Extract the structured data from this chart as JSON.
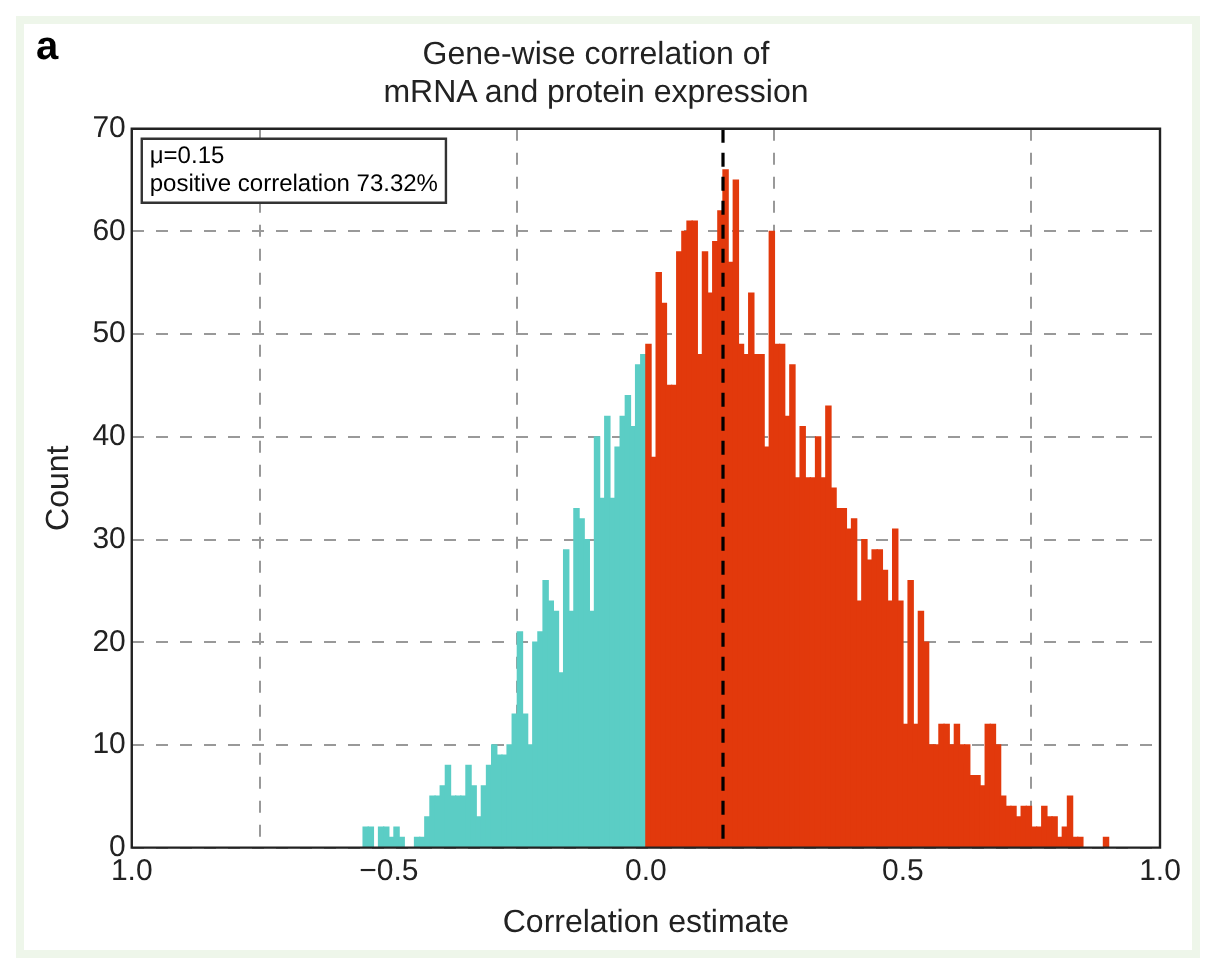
{
  "chart_data": {
    "type": "histogram",
    "title": "Gene-wise correlation of\nmRNA and protein expression",
    "xlabel": "Correlation estimate",
    "ylabel": "Count",
    "annotations": [
      "a",
      "μ=0.15",
      "positive correlation 73.32%"
    ],
    "bins": [
      -0.55,
      -0.54,
      -0.53,
      -0.52,
      -0.51,
      -0.5,
      -0.49,
      -0.48,
      -0.47,
      -0.46,
      -0.45,
      -0.44,
      -0.43,
      -0.42,
      -0.41,
      -0.4,
      -0.39,
      -0.38,
      -0.37,
      -0.36,
      -0.35,
      -0.34,
      -0.33,
      -0.32,
      -0.31,
      -0.3,
      -0.29,
      -0.28,
      -0.27,
      -0.26,
      -0.25,
      -0.24,
      -0.23,
      -0.22,
      -0.21,
      -0.2,
      -0.19,
      -0.18,
      -0.17,
      -0.16,
      -0.15,
      -0.14,
      -0.13,
      -0.12,
      -0.11,
      -0.1,
      -0.09,
      -0.08,
      -0.07,
      -0.06,
      -0.05,
      -0.04,
      -0.03,
      -0.02,
      -0.01,
      0,
      0.01,
      0.02,
      0.03,
      0.04,
      0.05,
      0.06,
      0.07,
      0.08,
      0.09,
      0.1,
      0.11,
      0.12,
      0.13,
      0.14,
      0.15,
      0.16,
      0.17,
      0.18,
      0.19,
      0.2,
      0.21,
      0.22,
      0.23,
      0.24,
      0.25,
      0.26,
      0.27,
      0.28,
      0.29,
      0.3,
      0.31,
      0.32,
      0.33,
      0.34,
      0.35,
      0.36,
      0.37,
      0.38,
      0.39,
      0.4,
      0.41,
      0.42,
      0.43,
      0.44,
      0.45,
      0.46,
      0.47,
      0.48,
      0.49,
      0.5,
      0.51,
      0.52,
      0.53,
      0.54,
      0.55,
      0.56,
      0.57,
      0.58,
      0.59,
      0.6,
      0.61,
      0.62,
      0.63,
      0.64,
      0.65,
      0.66,
      0.67,
      0.68,
      0.69,
      0.7,
      0.71,
      0.72,
      0.73,
      0.74,
      0.75,
      0.76,
      0.77,
      0.78,
      0.79,
      0.8,
      0.81,
      0.82,
      0.83,
      0.84,
      0.85,
      0.86,
      0.87,
      0.88,
      0.89,
      0.9
    ],
    "values": [
      2,
      2,
      0,
      2,
      2,
      1,
      2,
      1,
      0,
      0,
      1,
      1,
      3,
      5,
      5,
      6,
      8,
      5,
      5,
      5,
      8,
      6,
      3,
      6,
      8,
      10,
      9,
      9,
      10,
      13,
      21,
      13,
      10,
      20,
      21,
      26,
      24,
      23,
      17,
      29,
      23,
      33,
      32,
      30,
      23,
      40,
      34,
      42,
      34,
      39,
      42,
      44,
      41,
      47,
      48,
      49,
      38,
      56,
      53,
      45,
      45,
      58,
      60,
      61,
      61,
      48,
      58,
      54,
      59,
      62,
      66,
      57,
      65,
      49,
      48,
      54,
      48,
      48,
      39,
      60,
      49,
      49,
      42,
      47,
      36,
      41,
      36,
      36,
      40,
      36,
      43,
      35,
      33,
      33,
      31,
      32,
      24,
      30,
      28,
      29,
      29,
      27,
      24,
      31,
      24,
      12,
      26,
      12,
      23,
      20,
      10,
      10,
      12,
      12,
      10,
      12,
      10,
      10,
      7,
      7,
      6,
      12,
      12,
      10,
      5,
      4,
      4,
      3,
      4,
      4,
      2,
      2,
      4,
      3,
      3,
      1,
      2,
      5,
      1,
      1,
      0,
      0,
      0,
      0,
      1
    ],
    "colors": [
      "#5bcdc5",
      "#5bcdc5",
      "#5bcdc5",
      "#5bcdc5",
      "#5bcdc5",
      "#5bcdc5",
      "#5bcdc5",
      "#5bcdc5",
      "#5bcdc5",
      "#5bcdc5",
      "#5bcdc5",
      "#5bcdc5",
      "#5bcdc5",
      "#5bcdc5",
      "#5bcdc5",
      "#5bcdc5",
      "#5bcdc5",
      "#5bcdc5",
      "#5bcdc5",
      "#5bcdc5",
      "#5bcdc5",
      "#5bcdc5",
      "#5bcdc5",
      "#5bcdc5",
      "#5bcdc5",
      "#5bcdc5",
      "#5bcdc5",
      "#5bcdc5",
      "#5bcdc5",
      "#5bcdc5",
      "#5bcdc5",
      "#5bcdc5",
      "#5bcdc5",
      "#5bcdc5",
      "#5bcdc5",
      "#5bcdc5",
      "#5bcdc5",
      "#5bcdc5",
      "#5bcdc5",
      "#5bcdc5",
      "#5bcdc5",
      "#5bcdc5",
      "#5bcdc5",
      "#5bcdc5",
      "#5bcdc5",
      "#5bcdc5",
      "#5bcdc5",
      "#5bcdc5",
      "#5bcdc5",
      "#5bcdc5",
      "#5bcdc5",
      "#5bcdc5",
      "#5bcdc5",
      "#5bcdc5",
      "#5bcdc5",
      "#e2390c",
      "#e2390c",
      "#e2390c",
      "#e2390c",
      "#e2390c",
      "#e2390c",
      "#e2390c",
      "#e2390c",
      "#e2390c",
      "#e2390c",
      "#e2390c",
      "#e2390c",
      "#e2390c",
      "#e2390c",
      "#e2390c",
      "#e2390c",
      "#e2390c",
      "#e2390c",
      "#e2390c",
      "#e2390c",
      "#e2390c",
      "#e2390c",
      "#e2390c",
      "#e2390c",
      "#e2390c",
      "#e2390c",
      "#e2390c",
      "#e2390c",
      "#e2390c",
      "#e2390c",
      "#e2390c",
      "#e2390c",
      "#e2390c",
      "#e2390c",
      "#e2390c",
      "#e2390c",
      "#e2390c",
      "#e2390c",
      "#e2390c",
      "#e2390c",
      "#e2390c",
      "#e2390c",
      "#e2390c",
      "#e2390c",
      "#e2390c",
      "#e2390c",
      "#e2390c",
      "#e2390c",
      "#e2390c",
      "#e2390c",
      "#e2390c",
      "#e2390c",
      "#e2390c",
      "#e2390c",
      "#e2390c",
      "#e2390c",
      "#e2390c",
      "#e2390c",
      "#e2390c",
      "#e2390c",
      "#e2390c",
      "#e2390c",
      "#e2390c",
      "#e2390c",
      "#e2390c",
      "#e2390c",
      "#e2390c",
      "#e2390c",
      "#e2390c",
      "#e2390c",
      "#e2390c",
      "#e2390c",
      "#e2390c",
      "#e2390c",
      "#e2390c",
      "#e2390c",
      "#e2390c",
      "#e2390c",
      "#e2390c",
      "#e2390c",
      "#e2390c",
      "#e2390c",
      "#e2390c",
      "#e2390c",
      "#e2390c",
      "#e2390c",
      "#e2390c",
      "#e2390c",
      "#e2390c",
      "#e2390c"
    ],
    "xlim": [
      -1,
      1
    ],
    "xticks": [
      {
        "value": -1,
        "label": "1.0"
      },
      {
        "value": -0.5,
        "label": "−0.5"
      },
      {
        "value": 0,
        "label": "0.0"
      },
      {
        "value": 0.5,
        "label": "0.5"
      },
      {
        "value": 1,
        "label": "1.0"
      }
    ],
    "ylim": [
      0,
      70
    ],
    "yticks": [
      0,
      10,
      20,
      30,
      40,
      50,
      60,
      70
    ],
    "grid": true,
    "ref_lines": [
      {
        "axis": "x",
        "value": 0.15,
        "color": "#000000",
        "line_style": "dashed"
      }
    ]
  }
}
